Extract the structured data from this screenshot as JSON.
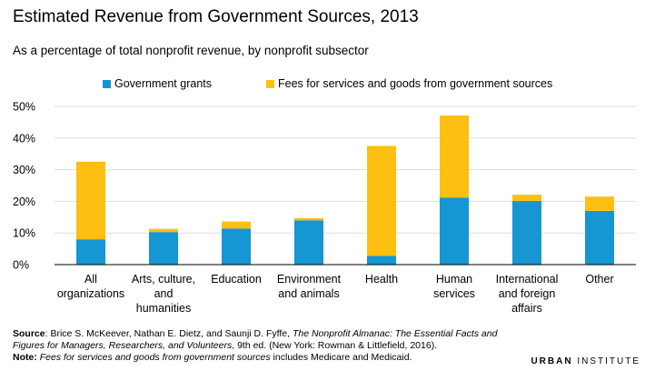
{
  "title": "Estimated Revenue from Government Sources, 2013",
  "subtitle": "As a percentage of total nonprofit revenue, by nonprofit subsector",
  "colors": {
    "grants": "#1696d2",
    "fees": "#fdbf11"
  },
  "chart_data": {
    "type": "bar",
    "stacked": true,
    "categories": [
      [
        "All",
        "organizations"
      ],
      [
        "Arts, culture,",
        "and",
        "humanities"
      ],
      [
        "Education"
      ],
      [
        "Environment",
        "and animals"
      ],
      [
        "Health"
      ],
      [
        "Human",
        "services"
      ],
      [
        "International",
        "and foreign",
        "affairs"
      ],
      [
        "Other"
      ]
    ],
    "series": [
      {
        "name": "Government grants",
        "color": "#1696d2",
        "values": [
          8,
          10.3,
          11.4,
          14,
          2.8,
          21.2,
          20.1,
          17
        ]
      },
      {
        "name": "Fees for services and goods from government sources",
        "color": "#fdbf11",
        "values": [
          24.5,
          1,
          2.2,
          0.7,
          34.7,
          25.9,
          2,
          4.5
        ]
      }
    ],
    "ylim": [
      0,
      50
    ],
    "yticks": [
      "0%",
      "10%",
      "20%",
      "30%",
      "40%",
      "50%"
    ],
    "ytick_values": [
      0,
      10,
      20,
      30,
      40,
      50
    ],
    "legend_position": "top",
    "grid": true
  },
  "source": {
    "label": "Source",
    "text_before_italic": ": Brice S. McKeever, Nathan E. Dietz, and Saunji D. Fyffe, ",
    "italic": "The Nonprofit Almanac: The Essential Facts and Figures for Managers, Researchers, and Volunteers",
    "text_after_italic": ", 9th ed. (New York: Rowman & Littlefield, 2016)."
  },
  "note": {
    "label": "Note:",
    "italic": "Fees for services and goods from government sources",
    "text": " includes Medicare and Medicaid."
  },
  "brand": {
    "strong": "URBAN",
    "rest": " INSTITUTE"
  }
}
